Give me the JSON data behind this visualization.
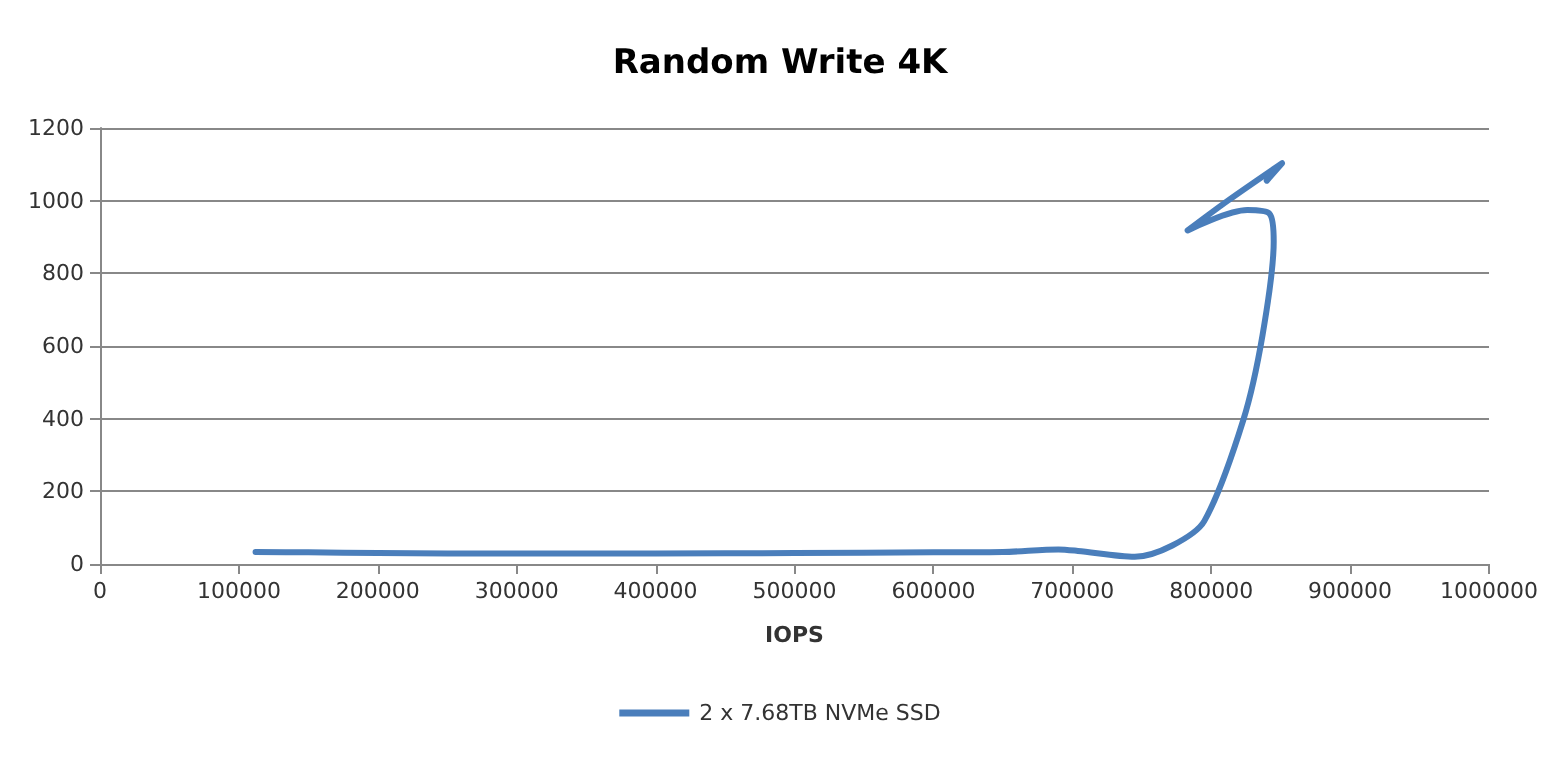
{
  "chart_data": {
    "type": "line",
    "title": "Random Write 4K",
    "xlabel": "IOPS",
    "series": [
      {
        "name": "2 x 7.68TB NVMe SSD",
        "color": "#4a7ebb",
        "x": [
          112000,
          150000,
          200000,
          250000,
          300000,
          400000,
          500000,
          600000,
          650000,
          690000,
          704000,
          745000,
          772000,
          795000,
          823000,
          837000,
          845000,
          842000,
          826000,
          783000,
          812000,
          851000,
          840000
        ],
        "values": [
          33,
          32,
          30,
          29,
          29,
          29,
          30,
          32,
          33,
          40,
          36,
          20,
          51,
          118,
          395,
          631,
          887,
          964,
          974,
          918,
          1000,
          1103,
          1055
        ]
      }
    ],
    "xlim": [
      0,
      1000000
    ],
    "xticks": [
      0,
      100000,
      200000,
      300000,
      400000,
      500000,
      600000,
      700000,
      800000,
      900000,
      1000000
    ],
    "ylim": [
      0,
      1200
    ],
    "yticks": [
      0,
      200,
      400,
      600,
      800,
      1000,
      1200
    ],
    "grid": "y",
    "legend": "bottom",
    "marker": "none",
    "line_style": "solid"
  }
}
